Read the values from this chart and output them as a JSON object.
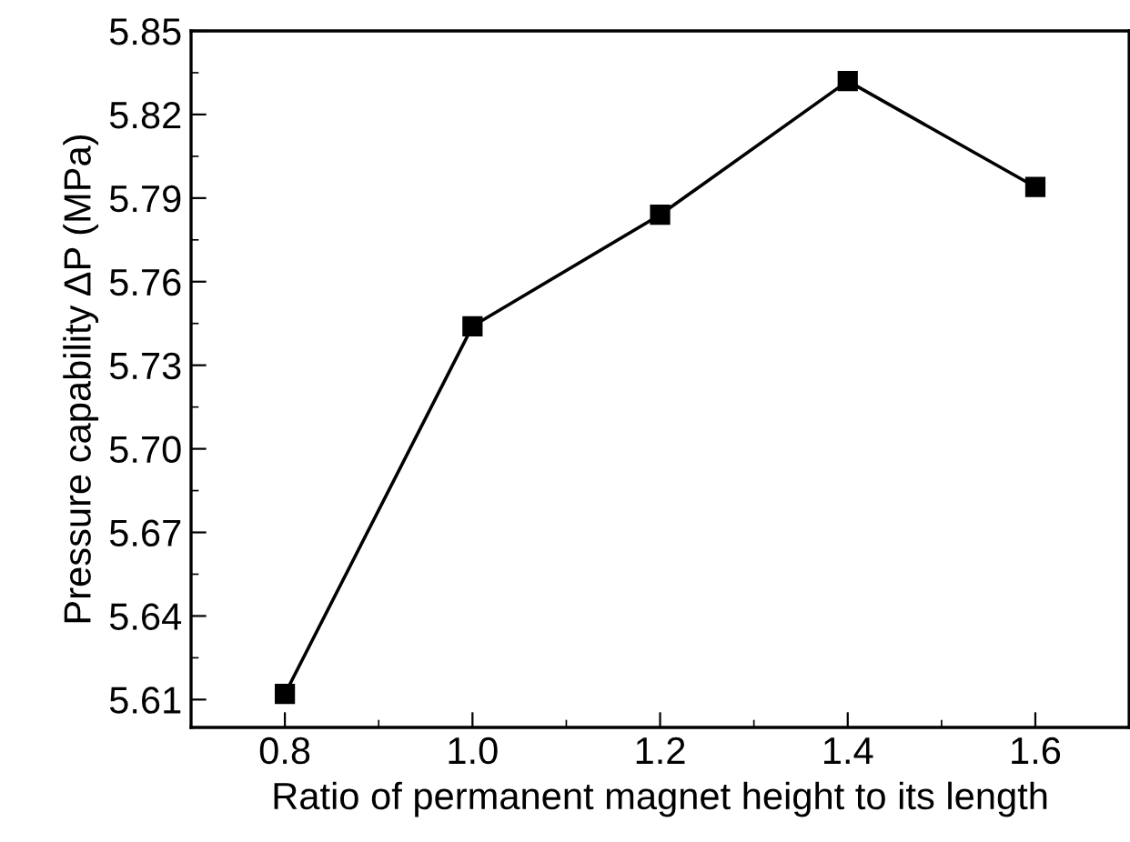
{
  "chart_data": {
    "type": "line",
    "xlabel": "Ratio of permanent magnet height to its length",
    "ylabel": "Pressure capability ΔP (MPa)",
    "x": [
      0.8,
      1.0,
      1.2,
      1.4,
      1.6
    ],
    "series": [
      {
        "color": "#000000",
        "values": [
          5.612,
          5.744,
          5.784,
          5.832,
          5.794
        ]
      }
    ],
    "marker": "square",
    "line_style": "solid",
    "xlim": [
      0.7,
      1.7
    ],
    "xticks": [
      {
        "value": 0.8,
        "label": "0.8"
      },
      {
        "value": 1.0,
        "label": "1.0"
      },
      {
        "value": 1.2,
        "label": "1.2"
      },
      {
        "value": 1.4,
        "label": "1.4"
      },
      {
        "value": 1.6,
        "label": "1.6"
      }
    ],
    "ylim": [
      5.6,
      5.85
    ],
    "yticks": [
      5.61,
      5.64,
      5.67,
      {
        "value": 5.7,
        "label": "5.70"
      },
      {
        "value": 5.73,
        "label": "5.73"
      },
      5.76,
      5.79,
      5.82,
      5.85
    ],
    "grid": false,
    "legend": false
  }
}
